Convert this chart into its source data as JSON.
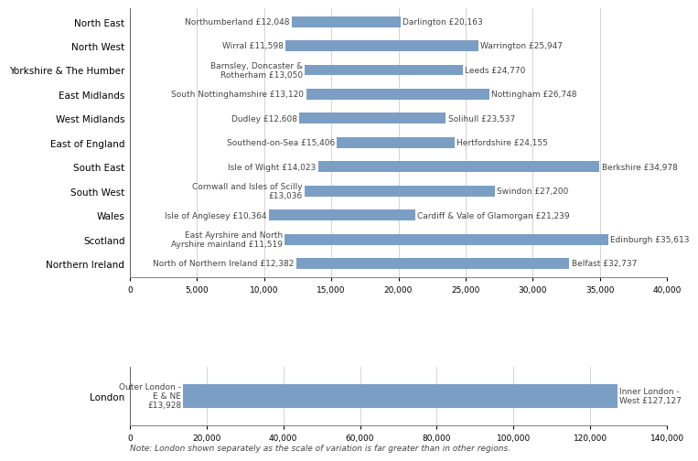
{
  "regions": [
    "North East",
    "North West",
    "Yorkshire & The Humber",
    "East Midlands",
    "West Midlands",
    "East of England",
    "South East",
    "South West",
    "Wales",
    "Scotland",
    "Northern Ireland"
  ],
  "low_values": [
    12048,
    11598,
    13050,
    13120,
    12608,
    15406,
    14023,
    13036,
    10364,
    11519,
    12382
  ],
  "high_values": [
    20163,
    25947,
    24770,
    26748,
    23537,
    24155,
    34978,
    27200,
    21239,
    35613,
    32737
  ],
  "low_labels": [
    "Northumberland £12,048",
    "Wirral £11,598",
    "Barnsley, Doncaster &\nRotherham £13,050",
    "South Nottinghamshire £13,120",
    "Dudley £12,608",
    "Southend-on-Sea £15,406",
    "Isle of Wight £14,023",
    "Cornwall and Isles of Scilly\n£13,036",
    "Isle of Anglesey £10,364",
    "East Ayrshire and North\nAyrshire mainland £11,519",
    "North of Northern Ireland £12,382"
  ],
  "high_labels": [
    "Darlington £20,163",
    "Warrington £25,947",
    "Leeds £24,770",
    "Nottingham £26,748",
    "Solihull £23,537",
    "Hertfordshire £24,155",
    "Berkshire £34,978",
    "Swindon £27,200",
    "Cardiff & Vale of Glamorgan £21,239",
    "Edinburgh £35,613",
    "Belfast £32,737"
  ],
  "bar_color": "#7b9ec4",
  "london_low_value": 13928,
  "london_high_value": 127127,
  "london_low_label": "Outer London -\nE & NE\n£13,928",
  "london_high_label": "Inner London -\nWest £127,127",
  "xlim_main": [
    0,
    40000
  ],
  "xlim_london": [
    0,
    140000
  ],
  "note": "Note: London shown separately as the scale of variation is far greater than in other regions.",
  "font_size_labels": 6.5,
  "font_size_region": 7.5,
  "font_size_axis": 6.5,
  "font_size_note": 6.5,
  "xticks_main": [
    0,
    5000,
    10000,
    15000,
    20000,
    25000,
    30000,
    35000,
    40000
  ],
  "xtick_labels_main": [
    "0",
    "5,000",
    "10,000",
    "15,000",
    "20,000",
    "25,000",
    "30,000",
    "35,000",
    "40,000"
  ],
  "xticks_london": [
    0,
    20000,
    40000,
    60000,
    80000,
    100000,
    120000,
    140000
  ],
  "xtick_labels_london": [
    "0",
    "20,000",
    "40,000",
    "60,000",
    "80,000",
    "100,000",
    "120,000",
    "140,000"
  ]
}
